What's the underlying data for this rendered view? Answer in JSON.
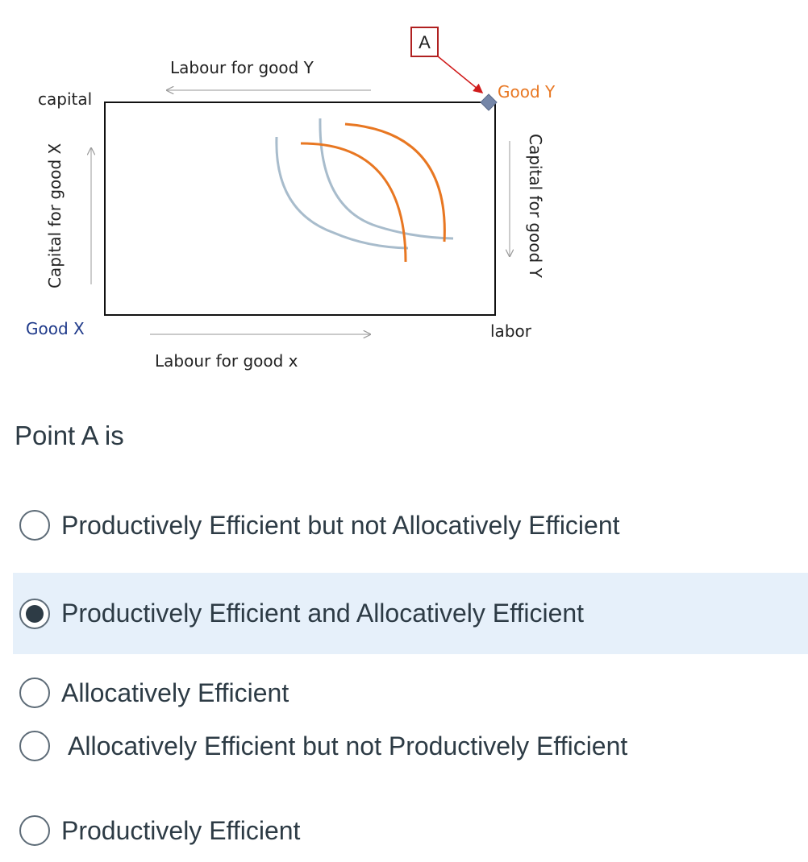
{
  "diagram": {
    "point_label": "A",
    "top_left_label": "capital",
    "good_x_label": "Good X",
    "good_y_label": "Good Y",
    "bottom_right_label": "labor",
    "labour_y_label": "Labour for good Y",
    "labour_x_label": "Labour for good x",
    "capital_x_label": "Capital for good X",
    "capital_y_label": "Capital for good Y",
    "colors": {
      "orange_curve": "#e87722",
      "blue_curve": "#a8bccc",
      "marker": "#7586a8",
      "pointer": "#d01c1c"
    }
  },
  "question": {
    "text": "Point A is"
  },
  "answers": [
    {
      "label": "Productively Efficient but not Allocatively Efficient",
      "selected": false
    },
    {
      "label": "Productively Efficient and Allocatively Efficient",
      "selected": true
    },
    {
      "label": "Allocatively Efficient",
      "selected": false
    },
    {
      "label": "Allocatively Efficient but not Productively Efficient",
      "selected": false
    },
    {
      "label": "Productively Efficient",
      "selected": false
    }
  ]
}
